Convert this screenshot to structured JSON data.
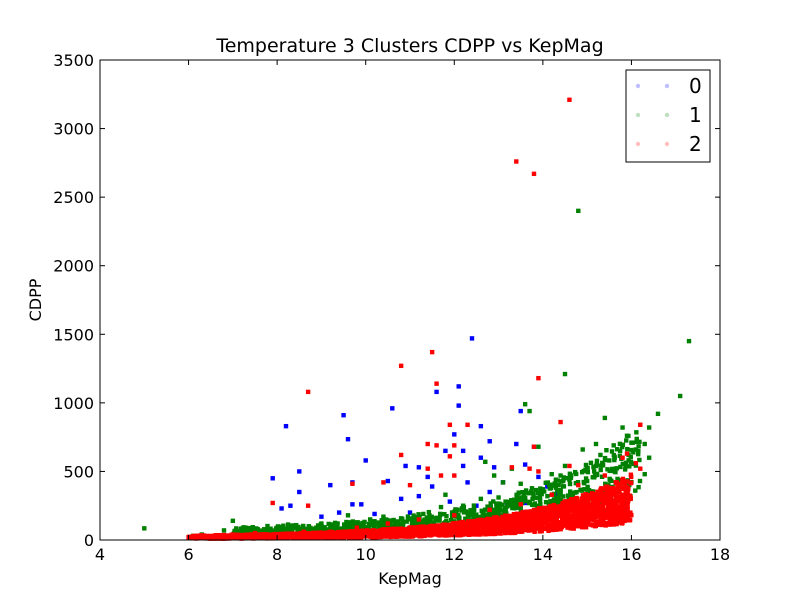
{
  "chart_data": {
    "type": "scatter",
    "title": "Temperature 3 Clusters CDPP vs KepMag",
    "xlabel": "KepMag",
    "ylabel": "CDPP",
    "xlim": [
      4,
      18
    ],
    "ylim": [
      0,
      3500
    ],
    "xticks": [
      4,
      6,
      8,
      10,
      12,
      14,
      16,
      18
    ],
    "yticks": [
      0,
      500,
      1000,
      1500,
      2000,
      2500,
      3000,
      3500
    ],
    "xtick_labels": [
      "4",
      "6",
      "8",
      "10",
      "12",
      "14",
      "16",
      "18"
    ],
    "ytick_labels": [
      "0",
      "500",
      "1000",
      "1500",
      "2000",
      "2500",
      "3000",
      "3500"
    ],
    "grid": false,
    "legend_position": "top-right",
    "series": [
      {
        "name": "0",
        "color": "#0000ff",
        "points": [
          [
            8.2,
            830
          ],
          [
            7.9,
            450
          ],
          [
            8.5,
            500
          ],
          [
            8.5,
            350
          ],
          [
            8.1,
            230
          ],
          [
            8.3,
            250
          ],
          [
            9.5,
            910
          ],
          [
            9.6,
            735
          ],
          [
            9.7,
            420
          ],
          [
            9.2,
            400
          ],
          [
            9.7,
            260
          ],
          [
            9.4,
            200
          ],
          [
            10.0,
            580
          ],
          [
            10.5,
            430
          ],
          [
            10.6,
            960
          ],
          [
            10.9,
            540
          ],
          [
            11.2,
            530
          ],
          [
            11.4,
            460
          ],
          [
            11.5,
            390
          ],
          [
            11.2,
            320
          ],
          [
            11.6,
            1080
          ],
          [
            11.8,
            650
          ],
          [
            12.1,
            1120
          ],
          [
            12.1,
            980
          ],
          [
            12.0,
            770
          ],
          [
            12.2,
            650
          ],
          [
            12.2,
            540
          ],
          [
            12.3,
            420
          ],
          [
            12.4,
            1470
          ],
          [
            12.6,
            830
          ],
          [
            12.8,
            720
          ],
          [
            12.6,
            600
          ],
          [
            12.9,
            530
          ],
          [
            13.1,
            420
          ],
          [
            13.4,
            700
          ],
          [
            13.5,
            940
          ],
          [
            13.6,
            550
          ],
          [
            13.8,
            680
          ],
          [
            13.9,
            460
          ],
          [
            14.1,
            390
          ],
          [
            14.3,
            330
          ],
          [
            12.8,
            350
          ],
          [
            10.8,
            300
          ],
          [
            9.9,
            260
          ],
          [
            11.9,
            280
          ],
          [
            13.2,
            260
          ],
          [
            12.5,
            250
          ],
          [
            13.6,
            270
          ],
          [
            11.0,
            200
          ],
          [
            10.2,
            190
          ],
          [
            9.0,
            170
          ],
          [
            12.0,
            200
          ],
          [
            13.0,
            200
          ],
          [
            14.0,
            230
          ]
        ]
      },
      {
        "name": "1",
        "color": "#008000",
        "points": [
          [
            5.0,
            85
          ],
          [
            6.1,
            30
          ],
          [
            6.3,
            40
          ],
          [
            6.8,
            70
          ],
          [
            7.0,
            140
          ],
          [
            7.1,
            60
          ],
          [
            7.5,
            50
          ],
          [
            7.6,
            30
          ],
          [
            8.0,
            60
          ],
          [
            8.4,
            90
          ],
          [
            8.6,
            80
          ],
          [
            9.0,
            120
          ],
          [
            9.3,
            90
          ],
          [
            9.6,
            180
          ],
          [
            10.1,
            150
          ],
          [
            10.4,
            170
          ],
          [
            10.8,
            120
          ],
          [
            11.3,
            190
          ],
          [
            11.7,
            240
          ],
          [
            12.2,
            250
          ],
          [
            12.6,
            300
          ],
          [
            12.7,
            570
          ],
          [
            13.0,
            310
          ],
          [
            13.1,
            420
          ],
          [
            13.5,
            410
          ],
          [
            13.6,
            990
          ],
          [
            13.7,
            940
          ],
          [
            13.9,
            680
          ],
          [
            14.2,
            480
          ],
          [
            14.4,
            470
          ],
          [
            14.5,
            1210
          ],
          [
            14.5,
            540
          ],
          [
            14.8,
            2400
          ],
          [
            14.9,
            660
          ],
          [
            15.0,
            520
          ],
          [
            15.2,
            700
          ],
          [
            15.3,
            620
          ],
          [
            15.4,
            890
          ],
          [
            15.5,
            580
          ],
          [
            15.6,
            690
          ],
          [
            15.8,
            820
          ],
          [
            15.9,
            760
          ],
          [
            16.0,
            710
          ],
          [
            16.1,
            660
          ],
          [
            16.2,
            840
          ],
          [
            16.3,
            700
          ],
          [
            16.4,
            600
          ],
          [
            16.4,
            820
          ],
          [
            16.6,
            920
          ],
          [
            17.1,
            1050
          ],
          [
            17.3,
            1450
          ],
          [
            16.3,
            480
          ],
          [
            14.0,
            370
          ],
          [
            15.0,
            430
          ],
          [
            12.9,
            470
          ],
          [
            13.3,
            520
          ],
          [
            11.8,
            330
          ],
          [
            10.5,
            140
          ]
        ]
      },
      {
        "name": "2",
        "color": "#ff0000",
        "points": [
          [
            14.6,
            3210
          ],
          [
            13.4,
            2760
          ],
          [
            13.8,
            2670
          ],
          [
            11.5,
            1370
          ],
          [
            10.8,
            1270
          ],
          [
            13.9,
            1180
          ],
          [
            11.6,
            1140
          ],
          [
            8.7,
            1080
          ],
          [
            12.3,
            840
          ],
          [
            14.4,
            860
          ],
          [
            11.9,
            840
          ],
          [
            16.2,
            840
          ],
          [
            11.4,
            700
          ],
          [
            10.8,
            620
          ],
          [
            11.6,
            690
          ],
          [
            11.9,
            610
          ],
          [
            12.0,
            690
          ],
          [
            13.8,
            680
          ],
          [
            13.3,
            530
          ],
          [
            14.6,
            540
          ],
          [
            13.7,
            520
          ],
          [
            11.4,
            520
          ],
          [
            11.7,
            470
          ],
          [
            10.4,
            420
          ],
          [
            11.0,
            400
          ],
          [
            9.7,
            410
          ],
          [
            7.9,
            270
          ],
          [
            8.7,
            250
          ],
          [
            12.0,
            470
          ],
          [
            13.9,
            500
          ],
          [
            15.8,
            600
          ],
          [
            15.9,
            630
          ],
          [
            16.1,
            560
          ],
          [
            16.2,
            520
          ],
          [
            6.0,
            20
          ],
          [
            6.5,
            20
          ],
          [
            7.0,
            40
          ],
          [
            7.5,
            50
          ],
          [
            8.0,
            40
          ],
          [
            8.6,
            60
          ],
          [
            9.2,
            60
          ],
          [
            9.8,
            90
          ],
          [
            10.5,
            120
          ],
          [
            11.2,
            150
          ],
          [
            12.0,
            180
          ],
          [
            12.8,
            220
          ],
          [
            13.5,
            260
          ],
          [
            14.2,
            330
          ],
          [
            14.8,
            400
          ],
          [
            15.4,
            470
          ]
        ]
      }
    ],
    "dense_band": {
      "series": "2",
      "note": "",
      "x_range": [
        6.0,
        16.0
      ]
    },
    "dense_band_green": {
      "series": "1",
      "x_range": [
        7.0,
        16.2
      ]
    }
  }
}
